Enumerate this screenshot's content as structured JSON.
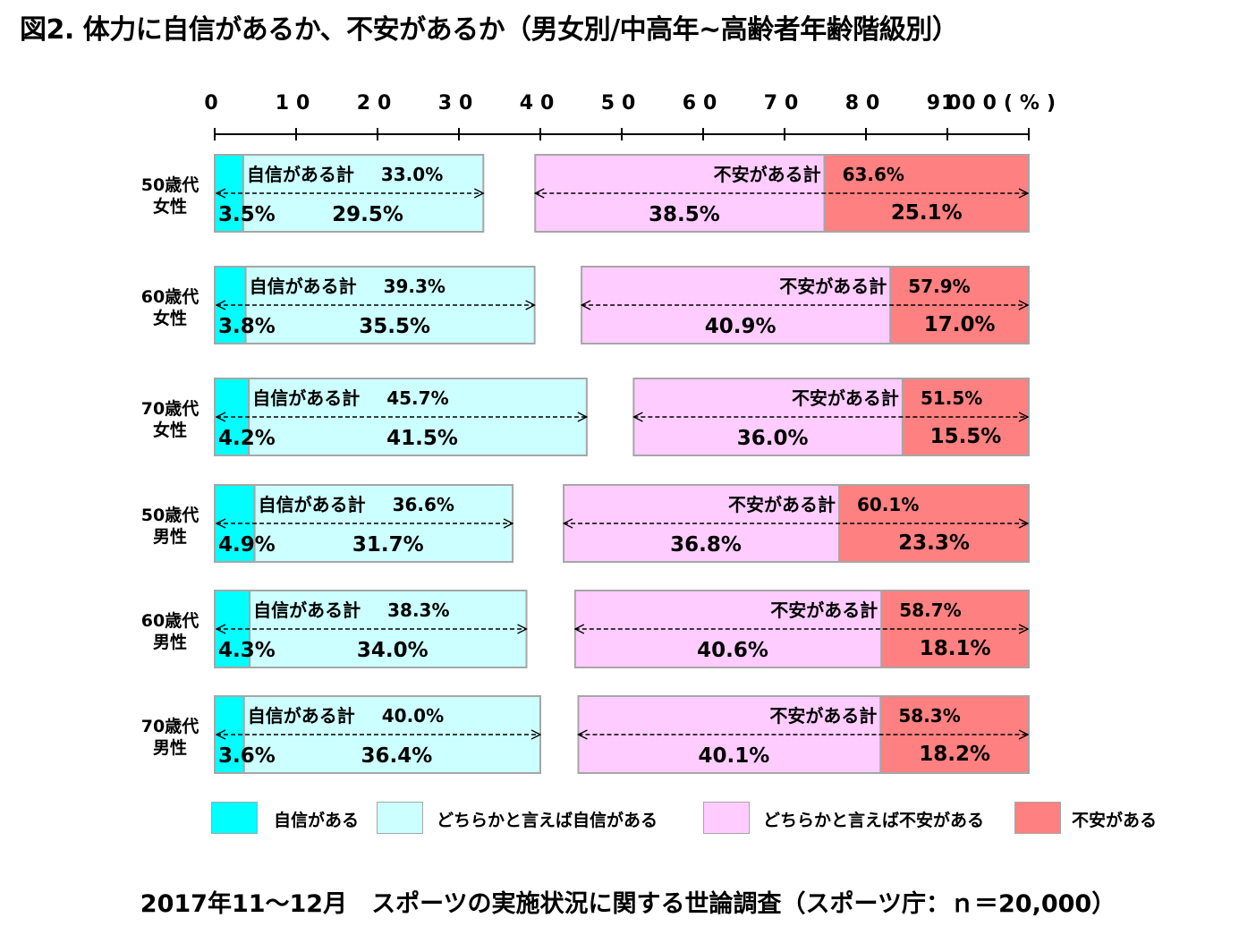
{
  "title": "図2. 体力に自信があるか、不安があるか（男女別/中高年~高齢者年齢階級別）",
  "source": "2017年11～12月　スポーツの実施状況に関する世論調査（スポーツ庁：ｎ＝20,000）",
  "colors": {
    "confident": "#00ffff",
    "somewhat_confident": "#ccffff",
    "somewhat_anxious": "#ffccff",
    "anxious": "#ff8080",
    "bar_border": "#a6a6a6"
  },
  "legend": [
    {
      "key": "confident",
      "label": "自信がある"
    },
    {
      "key": "somewhat_confident",
      "label": "どちらかと言えば自信がある"
    },
    {
      "key": "somewhat_anxious",
      "label": "どちらかと言えば不安がある"
    },
    {
      "key": "anxious",
      "label": "不安がある"
    }
  ],
  "chart_data": {
    "type": "bar",
    "orientation": "horizontal",
    "stacked": true,
    "xlim": [
      0,
      100
    ],
    "x_ticks": [
      "0",
      "10",
      "20",
      "30",
      "40",
      "50",
      "60",
      "70",
      "80",
      "90",
      "100(%)"
    ],
    "confident_total_label": "自信がある計",
    "anxious_total_label": "不安がある計",
    "categories": [
      {
        "line1": "50歳代",
        "line2": "女性"
      },
      {
        "line1": "60歳代",
        "line2": "女性"
      },
      {
        "line1": "70歳代",
        "line2": "女性"
      },
      {
        "line1": "50歳代",
        "line2": "男性"
      },
      {
        "line1": "60歳代",
        "line2": "男性"
      },
      {
        "line1": "70歳代",
        "line2": "男性"
      }
    ],
    "rows": [
      {
        "confident": 3.5,
        "somewhat_confident": 29.5,
        "somewhat_anxious": 38.5,
        "anxious": 25.1,
        "confident_total": 33.0,
        "anxious_total": 63.6
      },
      {
        "confident": 3.8,
        "somewhat_confident": 35.5,
        "somewhat_anxious": 40.9,
        "anxious": 17.0,
        "confident_total": 39.3,
        "anxious_total": 57.9
      },
      {
        "confident": 4.2,
        "somewhat_confident": 41.5,
        "somewhat_anxious": 36.0,
        "anxious": 15.5,
        "confident_total": 45.7,
        "anxious_total": 51.5
      },
      {
        "confident": 4.9,
        "somewhat_confident": 31.7,
        "somewhat_anxious": 36.8,
        "anxious": 23.3,
        "confident_total": 36.6,
        "anxious_total": 60.1
      },
      {
        "confident": 4.3,
        "somewhat_confident": 34.0,
        "somewhat_anxious": 40.6,
        "anxious": 18.1,
        "confident_total": 38.3,
        "anxious_total": 58.7
      },
      {
        "confident": 3.6,
        "somewhat_confident": 36.4,
        "somewhat_anxious": 40.1,
        "anxious": 18.2,
        "confident_total": 40.0,
        "anxious_total": 58.3
      }
    ]
  }
}
